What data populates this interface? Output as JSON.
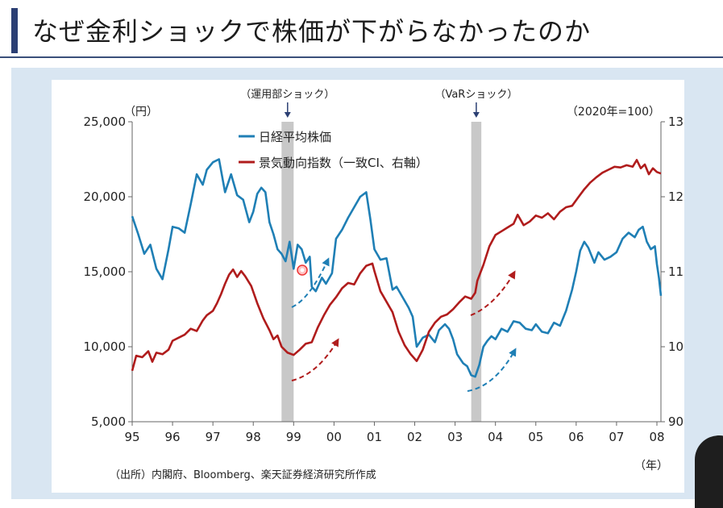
{
  "slide": {
    "title": "なぜ金利ショックで株価が下がらなかったのか",
    "source": "（出所）内閣府、Bloomberg、楽天証券経済研究所作成"
  },
  "colors": {
    "nikkei": "#1f7fb5",
    "ci": "#b01c1c",
    "shock_band": "#c8c8c8",
    "title_accent": "#2b3f73",
    "slide_bg": "#d9e6f2"
  },
  "chart_data": {
    "type": "line",
    "left_unit": "（円）",
    "right_unit": "（2020年=100）",
    "x_unit": "（年）",
    "x_tick_labels": [
      "95",
      "96",
      "97",
      "98",
      "99",
      "00",
      "01",
      "02",
      "03",
      "04",
      "05",
      "06",
      "07",
      "08"
    ],
    "x_range": [
      1995,
      2008.1
    ],
    "y_left_ticks": [
      "25,000",
      "20,000",
      "15,000",
      "10,000",
      "5,000"
    ],
    "y_left_values": [
      25000,
      20000,
      15000,
      10000,
      5000
    ],
    "y_left_range": [
      5000,
      25000
    ],
    "y_right_ticks": [
      "130",
      "120",
      "110",
      "100",
      "90"
    ],
    "y_right_values": [
      130,
      120,
      110,
      100,
      90
    ],
    "y_right_range": [
      90,
      130
    ],
    "shocks": [
      {
        "label": "（運用部ショック）",
        "start": 1998.7,
        "end": 1999.0
      },
      {
        "label": "（VaRショック）",
        "start": 2003.4,
        "end": 2003.65
      }
    ],
    "series": [
      {
        "name": "日経平均株価",
        "axis": "left",
        "points": [
          [
            1995.0,
            18700
          ],
          [
            1995.15,
            17500
          ],
          [
            1995.3,
            16200
          ],
          [
            1995.45,
            16800
          ],
          [
            1995.6,
            15200
          ],
          [
            1995.75,
            14500
          ],
          [
            1995.9,
            16500
          ],
          [
            1996.0,
            18000
          ],
          [
            1996.15,
            17900
          ],
          [
            1996.3,
            17600
          ],
          [
            1996.45,
            19500
          ],
          [
            1996.6,
            21500
          ],
          [
            1996.75,
            20800
          ],
          [
            1996.85,
            21800
          ],
          [
            1997.0,
            22300
          ],
          [
            1997.15,
            22500
          ],
          [
            1997.3,
            20300
          ],
          [
            1997.45,
            21500
          ],
          [
            1997.6,
            20100
          ],
          [
            1997.75,
            19800
          ],
          [
            1997.9,
            18300
          ],
          [
            1998.0,
            19000
          ],
          [
            1998.1,
            20200
          ],
          [
            1998.2,
            20600
          ],
          [
            1998.3,
            20300
          ],
          [
            1998.4,
            18300
          ],
          [
            1998.5,
            17500
          ],
          [
            1998.6,
            16500
          ],
          [
            1998.7,
            16200
          ],
          [
            1998.8,
            15700
          ],
          [
            1998.9,
            17000
          ],
          [
            1999.0,
            15200
          ],
          [
            1999.1,
            16800
          ],
          [
            1999.2,
            16500
          ],
          [
            1999.3,
            15600
          ],
          [
            1999.4,
            16000
          ],
          [
            1999.45,
            14000
          ],
          [
            1999.55,
            13700
          ],
          [
            1999.7,
            14600
          ],
          [
            1999.8,
            14200
          ],
          [
            1999.95,
            14900
          ],
          [
            2000.05,
            17200
          ],
          [
            2000.2,
            17800
          ],
          [
            2000.35,
            18600
          ],
          [
            2000.5,
            19300
          ],
          [
            2000.65,
            20000
          ],
          [
            2000.8,
            20300
          ],
          [
            2000.9,
            18500
          ],
          [
            2001.0,
            16500
          ],
          [
            2001.15,
            15800
          ],
          [
            2001.3,
            15900
          ],
          [
            2001.45,
            13800
          ],
          [
            2001.55,
            14000
          ],
          [
            2001.7,
            13300
          ],
          [
            2001.85,
            12600
          ],
          [
            2001.95,
            12000
          ],
          [
            2002.05,
            10000
          ],
          [
            2002.2,
            10600
          ],
          [
            2002.35,
            10800
          ],
          [
            2002.5,
            10300
          ],
          [
            2002.6,
            11100
          ],
          [
            2002.75,
            11500
          ],
          [
            2002.85,
            11200
          ],
          [
            2002.95,
            10500
          ],
          [
            2003.05,
            9500
          ],
          [
            2003.2,
            8900
          ],
          [
            2003.3,
            8700
          ],
          [
            2003.4,
            8100
          ],
          [
            2003.5,
            8000
          ],
          [
            2003.6,
            8800
          ],
          [
            2003.7,
            10000
          ],
          [
            2003.8,
            10400
          ],
          [
            2003.9,
            10700
          ],
          [
            2004.0,
            10500
          ],
          [
            2004.15,
            11200
          ],
          [
            2004.3,
            11000
          ],
          [
            2004.45,
            11700
          ],
          [
            2004.6,
            11600
          ],
          [
            2004.75,
            11200
          ],
          [
            2004.9,
            11100
          ],
          [
            2005.0,
            11500
          ],
          [
            2005.15,
            11000
          ],
          [
            2005.3,
            10900
          ],
          [
            2005.45,
            11600
          ],
          [
            2005.6,
            11400
          ],
          [
            2005.75,
            12400
          ],
          [
            2005.9,
            13800
          ],
          [
            2006.0,
            15000
          ],
          [
            2006.1,
            16400
          ],
          [
            2006.2,
            17000
          ],
          [
            2006.3,
            16600
          ],
          [
            2006.45,
            15600
          ],
          [
            2006.55,
            16300
          ],
          [
            2006.7,
            15800
          ],
          [
            2006.85,
            16000
          ],
          [
            2007.0,
            16300
          ],
          [
            2007.15,
            17200
          ],
          [
            2007.3,
            17600
          ],
          [
            2007.45,
            17300
          ],
          [
            2007.55,
            17800
          ],
          [
            2007.65,
            18000
          ],
          [
            2007.75,
            17000
          ],
          [
            2007.85,
            16500
          ],
          [
            2007.95,
            16700
          ],
          [
            2008.0,
            15500
          ],
          [
            2008.05,
            14600
          ],
          [
            2008.1,
            13400
          ]
        ]
      },
      {
        "name": "景気動向指数（一致CI、右軸）",
        "axis": "right",
        "points": [
          [
            1995.0,
            96.8
          ],
          [
            1995.1,
            98.8
          ],
          [
            1995.25,
            98.6
          ],
          [
            1995.4,
            99.4
          ],
          [
            1995.5,
            98.0
          ],
          [
            1995.6,
            99.2
          ],
          [
            1995.75,
            99.0
          ],
          [
            1995.9,
            99.6
          ],
          [
            1996.0,
            100.8
          ],
          [
            1996.15,
            101.2
          ],
          [
            1996.3,
            101.6
          ],
          [
            1996.45,
            102.4
          ],
          [
            1996.6,
            102.1
          ],
          [
            1996.75,
            103.5
          ],
          [
            1996.85,
            104.2
          ],
          [
            1997.0,
            104.8
          ],
          [
            1997.1,
            105.8
          ],
          [
            1997.2,
            107.0
          ],
          [
            1997.3,
            108.4
          ],
          [
            1997.4,
            109.6
          ],
          [
            1997.5,
            110.3
          ],
          [
            1997.6,
            109.3
          ],
          [
            1997.7,
            110.1
          ],
          [
            1997.8,
            109.4
          ],
          [
            1997.95,
            108.1
          ],
          [
            1998.1,
            105.8
          ],
          [
            1998.25,
            103.8
          ],
          [
            1998.4,
            102.2
          ],
          [
            1998.5,
            101.0
          ],
          [
            1998.6,
            101.5
          ],
          [
            1998.7,
            100.0
          ],
          [
            1998.85,
            99.2
          ],
          [
            1999.0,
            98.9
          ],
          [
            1999.15,
            99.6
          ],
          [
            1999.3,
            100.4
          ],
          [
            1999.45,
            100.6
          ],
          [
            1999.6,
            102.6
          ],
          [
            1999.75,
            104.2
          ],
          [
            1999.9,
            105.6
          ],
          [
            2000.05,
            106.6
          ],
          [
            2000.2,
            107.8
          ],
          [
            2000.35,
            108.5
          ],
          [
            2000.5,
            108.3
          ],
          [
            2000.65,
            109.8
          ],
          [
            2000.8,
            110.8
          ],
          [
            2000.95,
            111.1
          ],
          [
            2001.0,
            110.1
          ],
          [
            2001.15,
            107.4
          ],
          [
            2001.3,
            106.0
          ],
          [
            2001.45,
            104.6
          ],
          [
            2001.6,
            102.0
          ],
          [
            2001.75,
            100.2
          ],
          [
            2001.9,
            99.0
          ],
          [
            2002.05,
            98.1
          ],
          [
            2002.2,
            99.6
          ],
          [
            2002.35,
            102.0
          ],
          [
            2002.5,
            103.2
          ],
          [
            2002.65,
            104.0
          ],
          [
            2002.8,
            104.3
          ],
          [
            2002.95,
            105.0
          ],
          [
            2003.1,
            105.9
          ],
          [
            2003.25,
            106.7
          ],
          [
            2003.4,
            106.4
          ],
          [
            2003.5,
            107.2
          ],
          [
            2003.55,
            108.8
          ],
          [
            2003.7,
            110.9
          ],
          [
            2003.85,
            113.4
          ],
          [
            2004.0,
            114.9
          ],
          [
            2004.15,
            115.4
          ],
          [
            2004.3,
            115.9
          ],
          [
            2004.45,
            116.4
          ],
          [
            2004.55,
            117.6
          ],
          [
            2004.7,
            116.2
          ],
          [
            2004.85,
            116.7
          ],
          [
            2005.0,
            117.5
          ],
          [
            2005.15,
            117.2
          ],
          [
            2005.3,
            117.8
          ],
          [
            2005.45,
            117.0
          ],
          [
            2005.6,
            118.0
          ],
          [
            2005.75,
            118.6
          ],
          [
            2005.9,
            118.8
          ],
          [
            2006.05,
            119.9
          ],
          [
            2006.2,
            121.0
          ],
          [
            2006.35,
            121.9
          ],
          [
            2006.5,
            122.6
          ],
          [
            2006.65,
            123.2
          ],
          [
            2006.8,
            123.6
          ],
          [
            2006.95,
            124.0
          ],
          [
            2007.1,
            123.9
          ],
          [
            2007.25,
            124.2
          ],
          [
            2007.4,
            124.0
          ],
          [
            2007.5,
            124.9
          ],
          [
            2007.6,
            123.8
          ],
          [
            2007.7,
            124.3
          ],
          [
            2007.8,
            123.0
          ],
          [
            2007.9,
            123.8
          ],
          [
            2008.0,
            123.3
          ],
          [
            2008.1,
            123.1
          ]
        ]
      }
    ]
  }
}
